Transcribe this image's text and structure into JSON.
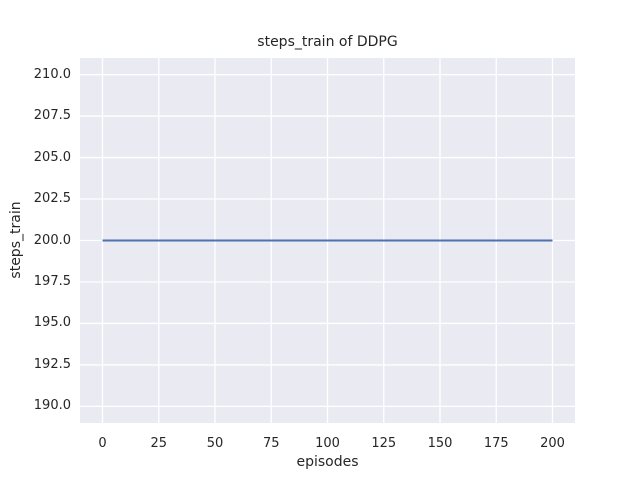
{
  "figure": {
    "background_color": "#ffffff",
    "text_color": "#262626"
  },
  "chart_data": {
    "type": "line",
    "title": "steps_train of DDPG",
    "xlabel": "episodes",
    "ylabel": "steps_train",
    "xlim": [
      -10,
      210
    ],
    "ylim": [
      189,
      211
    ],
    "grid": true,
    "legend": false,
    "plot_background_color": "#eaeaf2",
    "grid_color": "#ffffff",
    "x_ticks": [
      {
        "value": 0,
        "label": "0"
      },
      {
        "value": 25,
        "label": "25"
      },
      {
        "value": 50,
        "label": "50"
      },
      {
        "value": 75,
        "label": "75"
      },
      {
        "value": 100,
        "label": "100"
      },
      {
        "value": 125,
        "label": "125"
      },
      {
        "value": 150,
        "label": "150"
      },
      {
        "value": 175,
        "label": "175"
      },
      {
        "value": 200,
        "label": "200"
      }
    ],
    "y_ticks": [
      {
        "value": 190.0,
        "label": "190.0"
      },
      {
        "value": 192.5,
        "label": "192.5"
      },
      {
        "value": 195.0,
        "label": "195.0"
      },
      {
        "value": 197.5,
        "label": "197.5"
      },
      {
        "value": 200.0,
        "label": "200.0"
      },
      {
        "value": 202.5,
        "label": "202.5"
      },
      {
        "value": 205.0,
        "label": "205.0"
      },
      {
        "value": 207.5,
        "label": "207.5"
      },
      {
        "value": 210.0,
        "label": "210.0"
      }
    ],
    "series": [
      {
        "name": "steps_train",
        "color": "#4c72b0",
        "x": [
          0,
          200
        ],
        "y": [
          200,
          200
        ]
      }
    ]
  }
}
